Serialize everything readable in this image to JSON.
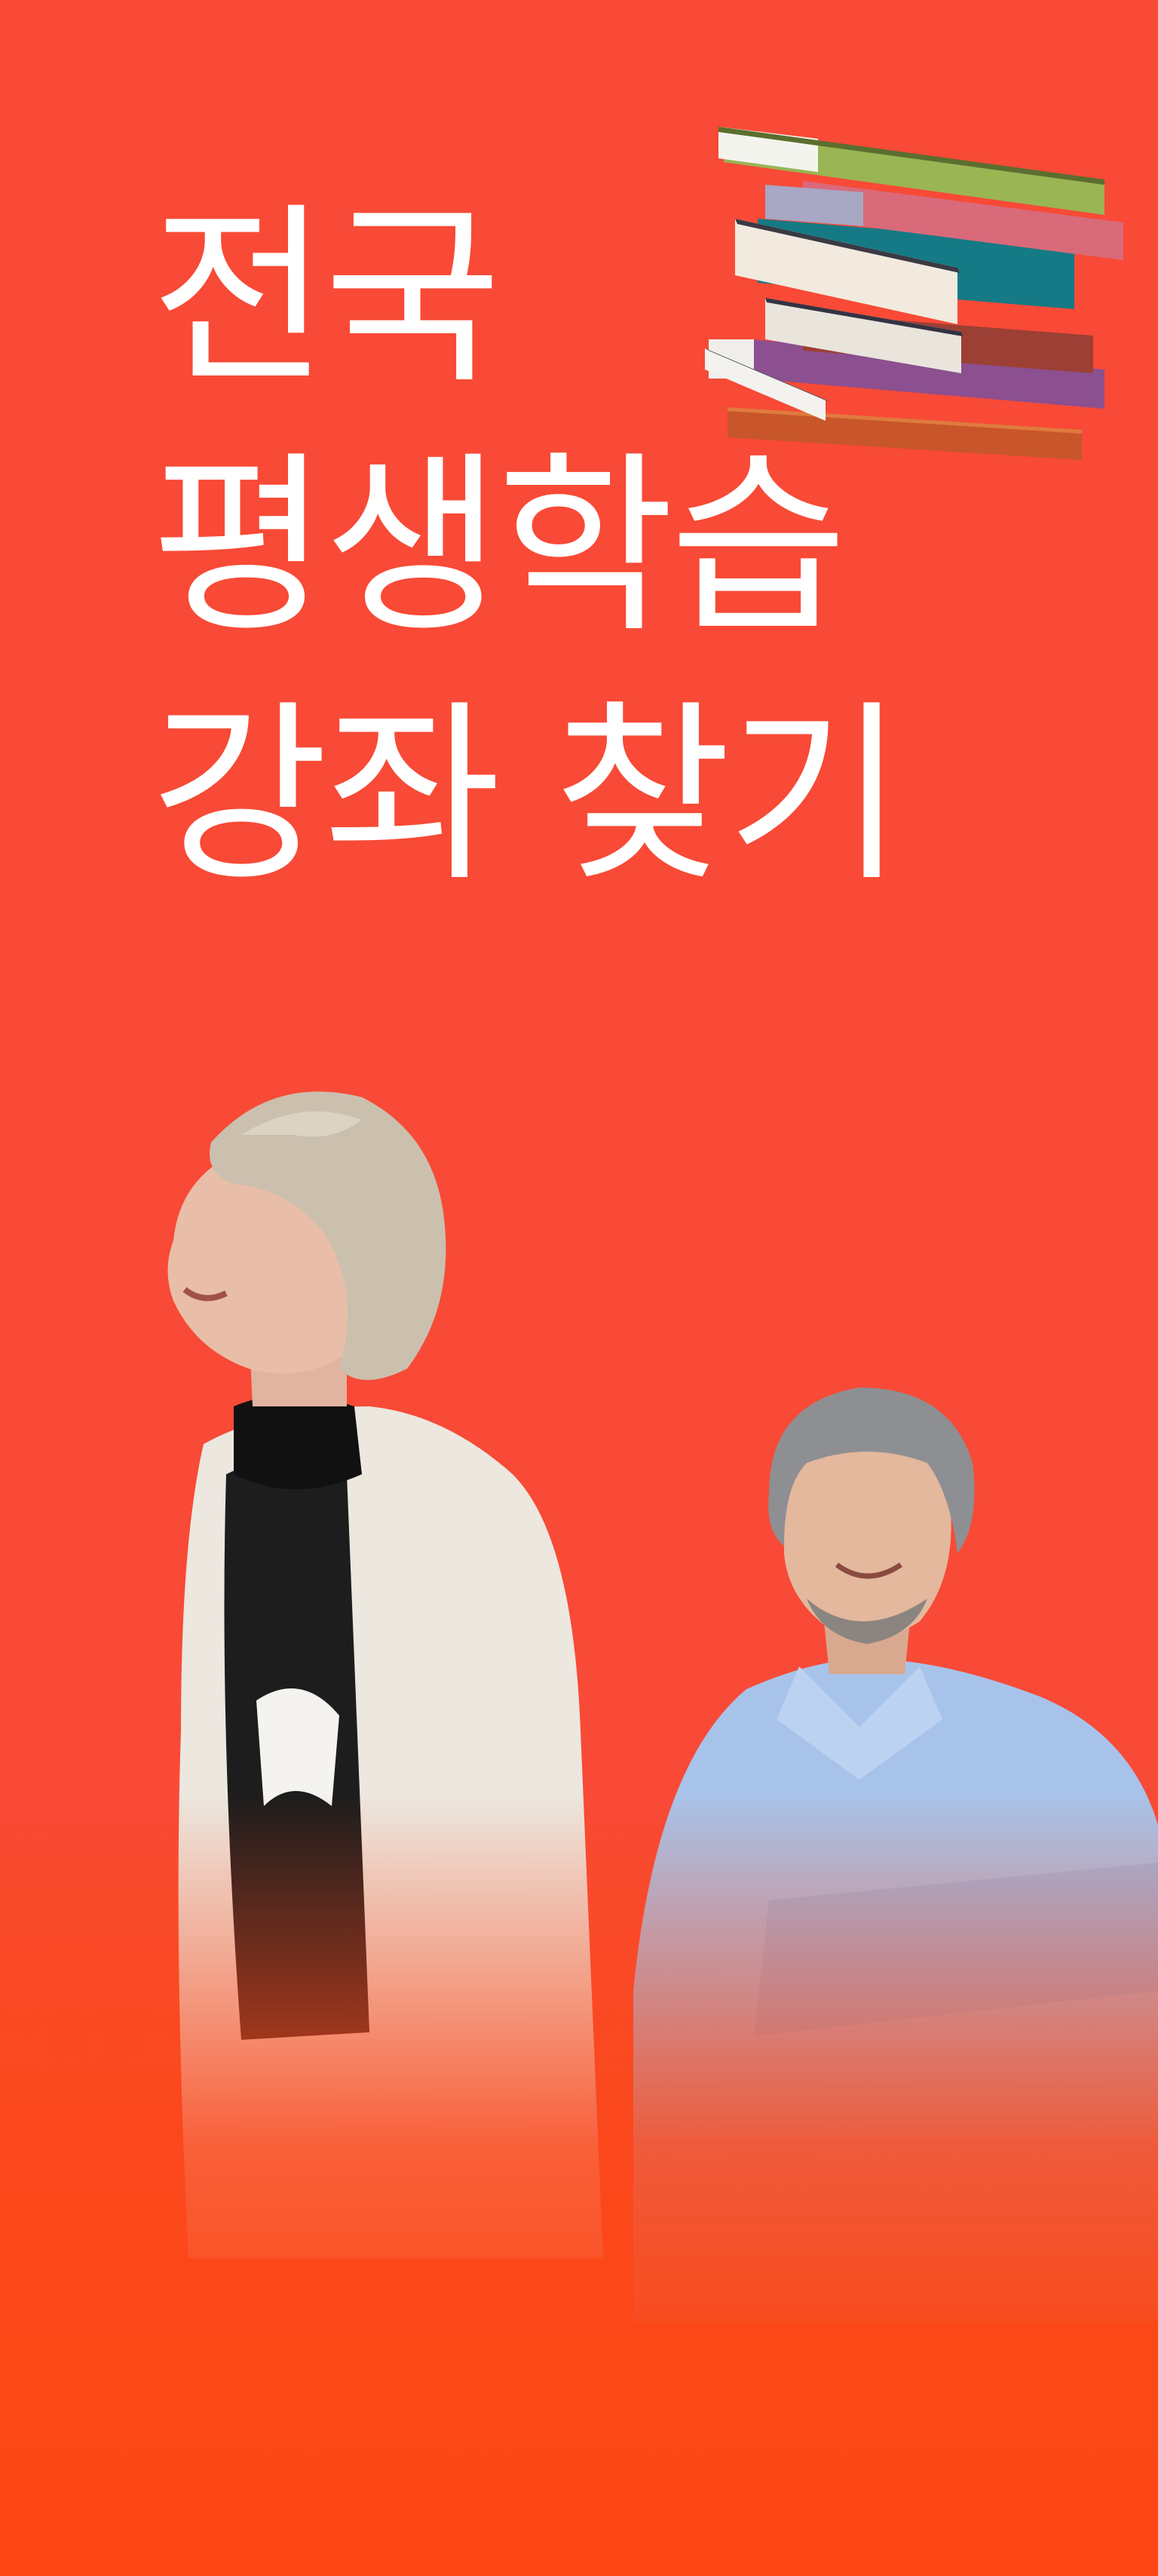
{
  "headline": {
    "line1": "전국",
    "line2": "평생학습",
    "line3": "강좌 찾기"
  },
  "colors": {
    "background": "#f84a36",
    "background_bottom": "#fc4616",
    "headline_text": "#ffffff"
  },
  "images": {
    "books": "stack-of-books-illustration",
    "woman": "smiling-senior-woman-photo",
    "man": "smiling-senior-man-photo"
  }
}
